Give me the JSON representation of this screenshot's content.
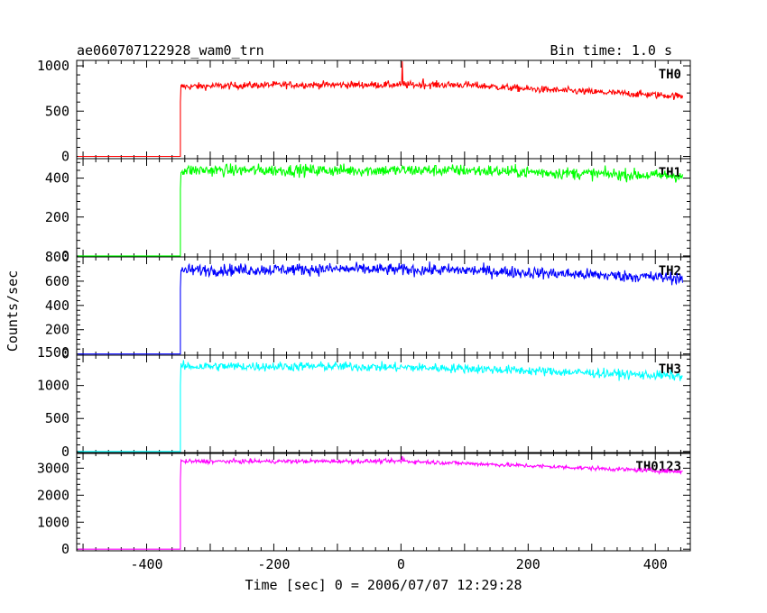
{
  "chart_data": {
    "type": "line",
    "title": "ae060707122928_wam0_trn",
    "subtitle": "Bin time: 1.0 s",
    "xlabel": "Time [sec] 0 = 2006/07/07 12:29:28",
    "ylabel": "Counts/sec",
    "xlim": [
      -510,
      455
    ],
    "x_ticks": [
      -400,
      -200,
      0,
      200,
      400
    ],
    "onset_time": -347,
    "data_end": 443,
    "panels": [
      {
        "name": "TH0",
        "color": "#ff0000",
        "ylim": [
          -25,
          1060
        ],
        "y_ticks": [
          0,
          500,
          1000
        ],
        "pre_level": 0,
        "profile": [
          [
            -347,
            770
          ],
          [
            -200,
            790
          ],
          [
            0,
            790
          ],
          [
            100,
            790
          ],
          [
            200,
            745
          ],
          [
            443,
            665
          ]
        ],
        "noise": 28,
        "features": [
          [
            2,
            1050
          ],
          [
            5,
            830
          ],
          [
            35,
            860
          ]
        ]
      },
      {
        "name": "TH1",
        "color": "#00ff00",
        "ylim": [
          -5,
          500
        ],
        "y_ticks": [
          0,
          200,
          400
        ],
        "pre_level": 0,
        "profile": [
          [
            -347,
            440
          ],
          [
            -100,
            440
          ],
          [
            100,
            440
          ],
          [
            443,
            410
          ]
        ],
        "noise": 22,
        "features": []
      },
      {
        "name": "TH2",
        "color": "#0000ff",
        "ylim": [
          -10,
          800
        ],
        "y_ticks": [
          0,
          200,
          400,
          600,
          800
        ],
        "pre_level": 0,
        "profile": [
          [
            -347,
            690
          ],
          [
            -100,
            700
          ],
          [
            100,
            690
          ],
          [
            443,
            625
          ]
        ],
        "noise": 35,
        "features": []
      },
      {
        "name": "TH3",
        "color": "#00ffff",
        "ylim": [
          -30,
          1460
        ],
        "y_ticks": [
          0,
          500,
          1000,
          1500
        ],
        "pre_level": 0,
        "profile": [
          [
            -347,
            1290
          ],
          [
            -100,
            1290
          ],
          [
            100,
            1260
          ],
          [
            443,
            1140
          ]
        ],
        "noise": 50,
        "features": []
      },
      {
        "name": "TH0123",
        "color": "#ff00ff",
        "ylim": [
          -60,
          3580
        ],
        "y_ticks": [
          0,
          1000,
          2000,
          3000
        ],
        "pre_level": 0,
        "profile": [
          [
            -347,
            3250
          ],
          [
            0,
            3260
          ],
          [
            100,
            3180
          ],
          [
            443,
            2870
          ]
        ],
        "noise": 55,
        "features": [
          [
            2,
            3450
          ],
          [
            5,
            3350
          ]
        ]
      }
    ]
  }
}
